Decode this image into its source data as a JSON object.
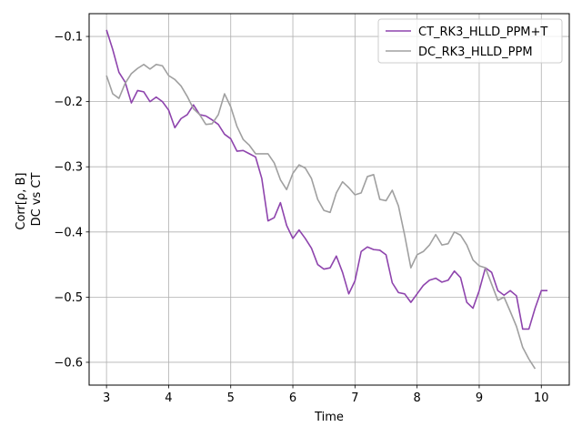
{
  "chart_data": {
    "type": "line",
    "title": "",
    "xlabel": "Time",
    "ylabel_lines": [
      "Corr[ρ, B]",
      "DC vs CT"
    ],
    "xlim": [
      2.72,
      10.45
    ],
    "ylim": [
      -0.635,
      -0.065
    ],
    "xticks": [
      3,
      4,
      5,
      6,
      7,
      8,
      9,
      10
    ],
    "yticks": [
      -0.6,
      -0.5,
      -0.4,
      -0.3,
      -0.2,
      -0.1
    ],
    "ytick_labels": [
      "−0.6",
      "−0.5",
      "−0.4",
      "−0.3",
      "−0.2",
      "−0.1"
    ],
    "grid": true,
    "legend_position": "top-right",
    "series": [
      {
        "name": "CT_RK3_HLLD_PPM+T",
        "color": "#8e44ad",
        "x": [
          3.0,
          3.1,
          3.2,
          3.3,
          3.4,
          3.5,
          3.6,
          3.7,
          3.8,
          3.9,
          4.0,
          4.1,
          4.2,
          4.3,
          4.4,
          4.5,
          4.6,
          4.7,
          4.8,
          4.9,
          5.0,
          5.1,
          5.2,
          5.3,
          5.4,
          5.5,
          5.6,
          5.7,
          5.8,
          5.9,
          6.0,
          6.1,
          6.2,
          6.3,
          6.4,
          6.5,
          6.6,
          6.7,
          6.8,
          6.9,
          7.0,
          7.1,
          7.2,
          7.3,
          7.4,
          7.5,
          7.6,
          7.7,
          7.8,
          7.9,
          8.0,
          8.1,
          8.2,
          8.3,
          8.4,
          8.5,
          8.6,
          8.7,
          8.8,
          8.9,
          9.0,
          9.1,
          9.2,
          9.3,
          9.4,
          9.5,
          9.6,
          9.7,
          9.8,
          9.9,
          10.0,
          10.1
        ],
        "y": [
          -0.09,
          -0.12,
          -0.155,
          -0.17,
          -0.202,
          -0.183,
          -0.185,
          -0.2,
          -0.193,
          -0.2,
          -0.213,
          -0.24,
          -0.226,
          -0.22,
          -0.205,
          -0.22,
          -0.222,
          -0.228,
          -0.235,
          -0.25,
          -0.257,
          -0.276,
          -0.275,
          -0.28,
          -0.285,
          -0.318,
          -0.383,
          -0.378,
          -0.355,
          -0.39,
          -0.41,
          -0.397,
          -0.41,
          -0.425,
          -0.45,
          -0.457,
          -0.455,
          -0.437,
          -0.462,
          -0.495,
          -0.475,
          -0.43,
          -0.423,
          -0.427,
          -0.428,
          -0.435,
          -0.478,
          -0.493,
          -0.495,
          -0.508,
          -0.495,
          -0.482,
          -0.474,
          -0.471,
          -0.477,
          -0.474,
          -0.46,
          -0.47,
          -0.508,
          -0.517,
          -0.49,
          -0.455,
          -0.462,
          -0.49,
          -0.497,
          -0.49,
          -0.498,
          -0.549,
          -0.549,
          -0.517,
          -0.49,
          -0.49
        ]
      },
      {
        "name": "DC_RK3_HLLD_PPM",
        "color": "#a0a0a0",
        "x": [
          3.0,
          3.1,
          3.2,
          3.3,
          3.4,
          3.5,
          3.6,
          3.7,
          3.8,
          3.9,
          4.0,
          4.1,
          4.2,
          4.3,
          4.4,
          4.5,
          4.6,
          4.7,
          4.8,
          4.9,
          5.0,
          5.1,
          5.2,
          5.3,
          5.4,
          5.5,
          5.6,
          5.7,
          5.8,
          5.9,
          6.0,
          6.1,
          6.2,
          6.3,
          6.4,
          6.5,
          6.6,
          6.7,
          6.8,
          6.9,
          7.0,
          7.1,
          7.2,
          7.3,
          7.4,
          7.5,
          7.6,
          7.7,
          7.8,
          7.9,
          8.0,
          8.1,
          8.2,
          8.3,
          8.4,
          8.5,
          8.6,
          8.7,
          8.8,
          8.9,
          9.0,
          9.1,
          9.2,
          9.3,
          9.4,
          9.5,
          9.6,
          9.7,
          9.8,
          9.9
        ],
        "y": [
          -0.16,
          -0.188,
          -0.195,
          -0.172,
          -0.157,
          -0.149,
          -0.143,
          -0.15,
          -0.143,
          -0.145,
          -0.16,
          -0.166,
          -0.176,
          -0.192,
          -0.211,
          -0.22,
          -0.235,
          -0.234,
          -0.22,
          -0.188,
          -0.208,
          -0.238,
          -0.258,
          -0.267,
          -0.28,
          -0.28,
          -0.28,
          -0.294,
          -0.32,
          -0.335,
          -0.31,
          -0.297,
          -0.302,
          -0.318,
          -0.35,
          -0.367,
          -0.37,
          -0.34,
          -0.323,
          -0.332,
          -0.343,
          -0.34,
          -0.315,
          -0.312,
          -0.35,
          -0.352,
          -0.336,
          -0.36,
          -0.405,
          -0.455,
          -0.435,
          -0.43,
          -0.42,
          -0.404,
          -0.42,
          -0.418,
          -0.4,
          -0.405,
          -0.42,
          -0.443,
          -0.452,
          -0.455,
          -0.48,
          -0.505,
          -0.5,
          -0.522,
          -0.545,
          -0.577,
          -0.595,
          -0.61
        ]
      }
    ]
  }
}
